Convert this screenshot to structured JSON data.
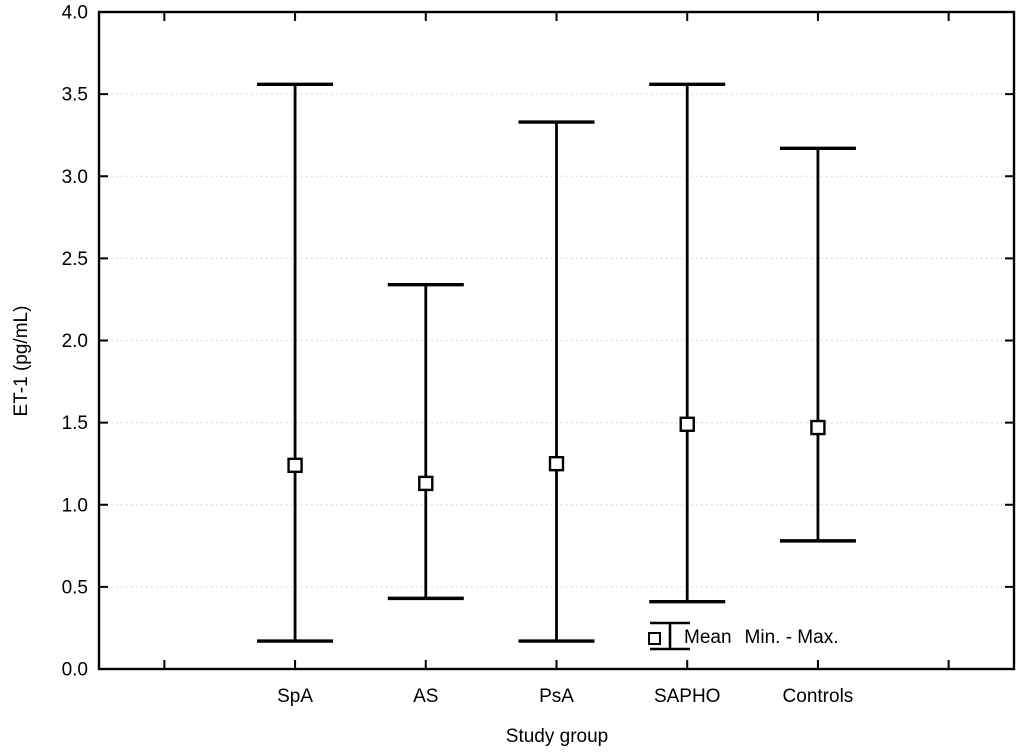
{
  "figure": {
    "background": "#ffffff",
    "line_color": "#000000",
    "grid_color": "#d6d6d6",
    "text_color": "#000000"
  },
  "chart_data": {
    "type": "min-max-whisker",
    "title": "",
    "xlabel": "Study group",
    "ylabel": "ET-1 (pg/mL)",
    "ylim": [
      0.0,
      4.0
    ],
    "ytick_step": 0.5,
    "ytick_labels": [
      "0.0",
      "0.5",
      "1.0",
      "1.5",
      "2.0",
      "2.5",
      "3.0",
      "3.5",
      "4.0"
    ],
    "categories": [
      "SpA",
      "AS",
      "PsA",
      "SAPHO",
      "Controls"
    ],
    "series": [
      {
        "name": "Mean",
        "values": [
          1.24,
          1.13,
          1.25,
          1.49,
          1.47
        ]
      },
      {
        "name": "Min",
        "values": [
          0.17,
          0.43,
          0.17,
          0.41,
          0.78
        ]
      },
      {
        "name": "Max",
        "values": [
          3.56,
          2.34,
          3.33,
          3.56,
          3.17
        ]
      }
    ],
    "grid": "horizontal-dotted",
    "legend_position": "inside-bottom-right",
    "legend": [
      {
        "marker": "square-icon",
        "label": "Mean"
      },
      {
        "marker": "min-max-whisker-icon",
        "label": "Min. - Max."
      }
    ]
  }
}
